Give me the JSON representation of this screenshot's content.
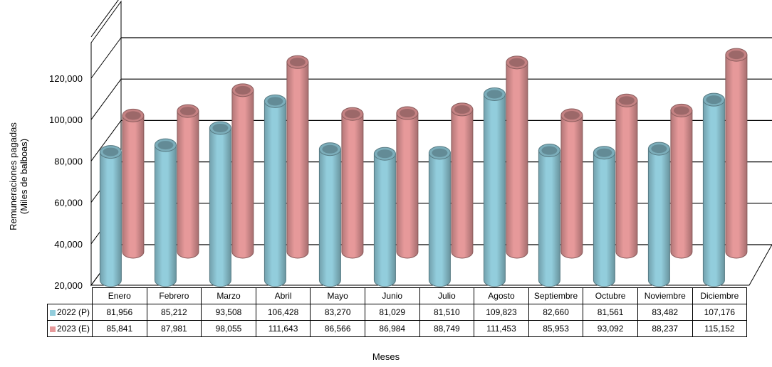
{
  "chart_data": {
    "type": "bar",
    "style": "3d-cylinder",
    "categories": [
      "Enero",
      "Febrero",
      "Marzo",
      "Abril",
      "Mayo",
      "Junio",
      "Julio",
      "Agosto",
      "Septiembre",
      "Octubre",
      "Noviembre",
      "Diciembre"
    ],
    "series": [
      {
        "name": "2022 (P)",
        "color": "#92cddc",
        "values": [
          81956,
          85212,
          93508,
          106428,
          83270,
          81029,
          81510,
          109823,
          82660,
          81561,
          83482,
          107176
        ]
      },
      {
        "name": "2023 (E)",
        "color": "#e6999a",
        "values": [
          85841,
          87981,
          98055,
          111643,
          86566,
          86984,
          88749,
          111453,
          85953,
          93092,
          88237,
          115152
        ]
      }
    ],
    "ylabel_line1": "Remuneraciones pagadas",
    "ylabel_line2": "(Miles de balboas)",
    "xlabel": "Meses",
    "ylim": [
      20000,
      120000
    ],
    "yticks": [
      "20,000",
      "40,000",
      "60,000",
      "80,000",
      "100,000",
      "120,000"
    ],
    "ytick_values": [
      20000,
      40000,
      60000,
      80000,
      100000,
      120000
    ],
    "grid": true,
    "legend": "data-table"
  }
}
